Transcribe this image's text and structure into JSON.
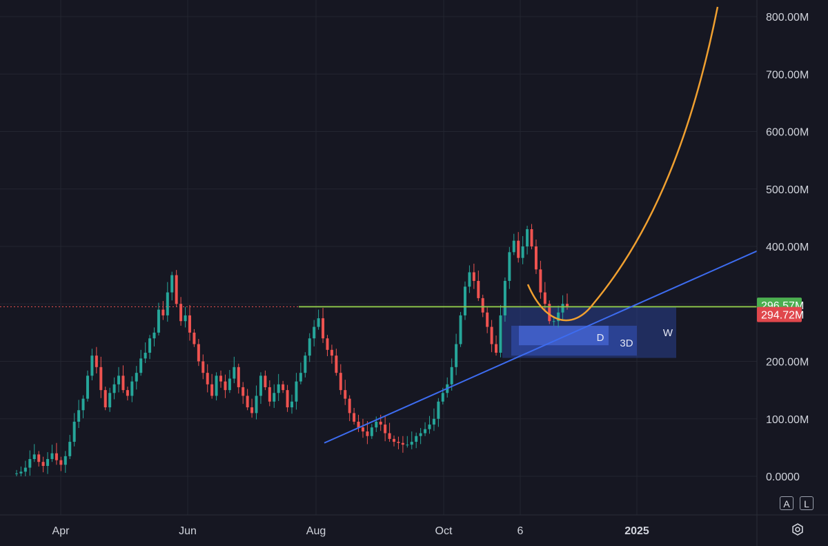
{
  "chart_data": {
    "type": "candlestick",
    "y_axis": {
      "ticks": [
        "800.00M",
        "700.00M",
        "600.00M",
        "500.00M",
        "400.00M",
        "200.00M",
        "100.00M",
        "0.0000"
      ],
      "tick_values": [
        800,
        700,
        600,
        500,
        400,
        200,
        100,
        0
      ],
      "range": [
        -70,
        820
      ],
      "unit": "M"
    },
    "x_axis": {
      "ticks": [
        "Apr",
        "Jun",
        "Aug",
        "Oct",
        "6",
        "2025"
      ],
      "bold_ticks": [
        "2025"
      ]
    },
    "price_tags": [
      {
        "label": "296.57M",
        "value": 296.57,
        "color": "#4caf50"
      },
      {
        "label": "294.72M",
        "value": 294.72,
        "color": "#e0474c"
      }
    ],
    "horizontal_level": {
      "value": 295,
      "color": "#8bc34a"
    },
    "trendline": {
      "color": "#3d6cf0",
      "points": [
        {
          "t": "Aug",
          "v": 58
        },
        {
          "t": "end",
          "v": 392
        }
      ]
    },
    "curve": {
      "color": "#f0a030",
      "note": ""
    },
    "zones": [
      {
        "label": "D",
        "top": 262,
        "bottom": 228
      },
      {
        "label": "3D",
        "top": 262,
        "bottom": 210
      },
      {
        "label": "W",
        "top": 295,
        "bottom": 206
      }
    ],
    "candles_close": [
      5,
      8,
      15,
      30,
      38,
      25,
      18,
      30,
      40,
      28,
      20,
      35,
      60,
      95,
      115,
      135,
      175,
      210,
      190,
      150,
      120,
      145,
      160,
      175,
      150,
      140,
      165,
      180,
      205,
      215,
      240,
      250,
      290,
      280,
      320,
      350,
      300,
      270,
      280,
      250,
      230,
      200,
      180,
      160,
      140,
      175,
      165,
      150,
      170,
      190,
      155,
      140,
      120,
      110,
      140,
      175,
      155,
      130,
      145,
      160,
      150,
      120,
      130,
      165,
      180,
      210,
      240,
      260,
      275,
      240,
      220,
      210,
      180,
      150,
      135,
      110,
      95,
      85,
      78,
      70,
      85,
      95,
      90,
      75,
      65,
      60,
      58,
      55,
      55,
      60,
      70,
      75,
      82,
      90,
      100,
      130,
      145,
      160,
      190,
      230,
      280,
      330,
      355,
      340,
      310,
      285,
      260,
      230,
      215,
      280,
      340,
      390,
      410,
      380,
      400,
      430,
      400,
      360,
      320,
      300,
      270,
      270,
      285,
      300,
      295
    ]
  },
  "toolbar": {
    "auto_label": "A",
    "log_label": "L"
  },
  "icons": {
    "settings": "gear-icon"
  }
}
